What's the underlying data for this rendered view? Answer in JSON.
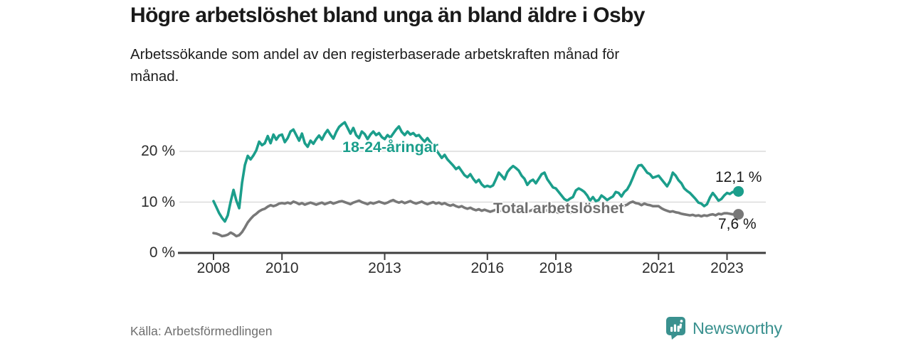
{
  "header": {
    "title": "Högre arbetslöshet bland unga än bland äldre i Osby",
    "subtitle_line1": "Arbetssökande som andel av den registerbaserade arbetskraften månad för",
    "subtitle_line2": "månad."
  },
  "footer": {
    "source": "Källa: Arbetsförmedlingen",
    "brand": "Newsworthy"
  },
  "colors": {
    "accent_teal": "#1b9e8b",
    "series_gray": "#787878",
    "grid": "#dbdbdb",
    "axis": "#3f3f3f",
    "text": "#1a1a1a",
    "muted_text": "#6e6e6e",
    "logo_teal": "#3a918f"
  },
  "chart_data": {
    "type": "line",
    "title": "Högre arbetslöshet bland unga än bland äldre i Osby",
    "xlabel": "",
    "ylabel": "Arbetssökande som andel av den registerbaserade arbetskraften",
    "x_unit": "monthly, decimal years",
    "period_start": "2008-01",
    "period_end": "2023-05",
    "xlim": [
      2008,
      2023.45
    ],
    "ylim": [
      0,
      27
    ],
    "grid": "horizontal",
    "legend_position": "inline-labels",
    "y_ticks": [
      {
        "value": 0,
        "label": "0 %"
      },
      {
        "value": 10,
        "label": "10 %"
      },
      {
        "value": 20,
        "label": "20 %"
      }
    ],
    "x_ticks": [
      {
        "year": 2008,
        "label": "2008"
      },
      {
        "year": 2010,
        "label": "2010"
      },
      {
        "year": 2013,
        "label": "2013"
      },
      {
        "year": 2016,
        "label": "2016"
      },
      {
        "year": 2018,
        "label": "2018"
      },
      {
        "year": 2021,
        "label": "2021"
      },
      {
        "year": 2023,
        "label": "2023"
      }
    ],
    "series": [
      {
        "name": "18-24-åringar",
        "label": "18-24-åringar",
        "color": "#1b9e8b",
        "start_year": 2008,
        "points_per_year": 12,
        "end_value": 12.1,
        "end_label": "12,1 %",
        "values": [
          10.2,
          9.0,
          7.8,
          6.9,
          6.2,
          7.4,
          10.1,
          12.4,
          10.3,
          8.8,
          13.8,
          17.3,
          19.1,
          18.4,
          19.2,
          20.2,
          21.9,
          21.2,
          21.6,
          23.0,
          21.6,
          23.3,
          22.3,
          23.1,
          23.3,
          21.8,
          22.6,
          23.9,
          24.3,
          23.2,
          22.1,
          23.5,
          21.6,
          20.9,
          22.1,
          21.5,
          22.4,
          23.1,
          22.3,
          23.4,
          24.2,
          23.3,
          22.5,
          23.8,
          24.8,
          25.3,
          25.7,
          24.6,
          23.5,
          24.6,
          23.2,
          22.6,
          23.9,
          23.4,
          22.4,
          23.3,
          23.9,
          23.2,
          23.6,
          22.8,
          22.4,
          23.2,
          22.7,
          23.5,
          24.3,
          24.9,
          23.8,
          23.2,
          23.9,
          23.3,
          23.6,
          23.0,
          23.2,
          22.5,
          21.9,
          22.6,
          21.8,
          21.0,
          20.3,
          19.5,
          18.7,
          19.3,
          18.4,
          17.8,
          17.2,
          16.5,
          16.9,
          16.1,
          15.3,
          14.9,
          15.5,
          14.6,
          13.9,
          14.4,
          13.5,
          13.0,
          13.2,
          13.0,
          13.3,
          14.5,
          15.8,
          15.2,
          14.5,
          15.9,
          16.6,
          17.1,
          16.7,
          16.2,
          15.2,
          14.6,
          13.4,
          14.1,
          14.4,
          13.7,
          14.6,
          15.5,
          15.8,
          14.5,
          13.7,
          12.9,
          12.7,
          12.0,
          11.3,
          10.6,
          10.3,
          10.7,
          11.0,
          12.3,
          12.7,
          12.4,
          12.0,
          11.3,
          10.3,
          11.0,
          10.2,
          10.4,
          11.3,
          10.9,
          10.4,
          10.8,
          11.1,
          12.0,
          11.8,
          11.1,
          12.0,
          12.5,
          13.5,
          14.8,
          16.2,
          17.2,
          17.3,
          16.6,
          15.8,
          15.5,
          14.8,
          15.0,
          15.2,
          14.5,
          13.8,
          13.1,
          14.1,
          15.8,
          15.2,
          14.3,
          13.7,
          12.7,
          12.2,
          11.8,
          11.2,
          10.6,
          9.9,
          9.7,
          9.2,
          9.6,
          10.9,
          11.8,
          11.1,
          10.3,
          10.6,
          11.3,
          11.8,
          11.6,
          12.0,
          11.9,
          12.1
        ]
      },
      {
        "name": "Total arbetslöshet",
        "label": "Total arbetslöshet",
        "color": "#787878",
        "start_year": 2008,
        "points_per_year": 12,
        "end_value": 7.6,
        "end_label": "7,6 %",
        "values": [
          3.9,
          3.8,
          3.6,
          3.3,
          3.4,
          3.6,
          4.0,
          3.7,
          3.3,
          3.5,
          4.1,
          5.0,
          6.0,
          6.7,
          7.3,
          7.7,
          8.2,
          8.5,
          8.7,
          9.1,
          9.4,
          9.2,
          9.4,
          9.7,
          9.8,
          9.7,
          9.9,
          9.7,
          10.1,
          9.9,
          9.6,
          9.8,
          9.5,
          9.7,
          9.9,
          9.7,
          9.5,
          9.7,
          9.9,
          9.6,
          9.8,
          10.0,
          9.7,
          9.9,
          10.1,
          10.2,
          10.0,
          9.8,
          9.6,
          9.9,
          10.1,
          10.3,
          10.0,
          9.8,
          9.6,
          9.9,
          9.7,
          9.9,
          10.1,
          9.9,
          9.7,
          9.9,
          10.2,
          10.4,
          10.1,
          9.9,
          10.1,
          9.8,
          10.0,
          10.2,
          9.9,
          9.7,
          9.9,
          10.1,
          9.8,
          9.6,
          9.8,
          10.0,
          9.7,
          9.9,
          9.6,
          9.8,
          9.5,
          9.3,
          9.5,
          9.2,
          9.0,
          9.2,
          8.9,
          8.7,
          8.9,
          8.6,
          8.4,
          8.6,
          8.3,
          8.5,
          8.3,
          8.1,
          8.3,
          8.5,
          8.2,
          8.4,
          8.1,
          8.3,
          8.5,
          8.3,
          8.1,
          8.3,
          8.5,
          8.3,
          8.1,
          8.3,
          8.5,
          8.3,
          8.5,
          8.7,
          8.5,
          8.3,
          8.1,
          8.3,
          8.1,
          7.9,
          8.1,
          8.3,
          8.1,
          7.9,
          8.1,
          8.3,
          8.1,
          8.3,
          8.5,
          8.3,
          8.1,
          8.3,
          8.5,
          8.3,
          8.5,
          8.7,
          8.5,
          8.7,
          8.9,
          8.7,
          8.9,
          9.1,
          9.3,
          9.5,
          9.9,
          10.1,
          9.8,
          9.7,
          9.4,
          9.7,
          9.5,
          9.4,
          9.2,
          9.2,
          9.2,
          8.8,
          8.5,
          8.3,
          8.1,
          8.2,
          8.0,
          7.9,
          7.7,
          7.6,
          7.5,
          7.4,
          7.5,
          7.3,
          7.4,
          7.2,
          7.4,
          7.3,
          7.5,
          7.6,
          7.4,
          7.7,
          7.6,
          7.8,
          7.8,
          7.7,
          7.6,
          7.7,
          7.6
        ]
      }
    ]
  }
}
